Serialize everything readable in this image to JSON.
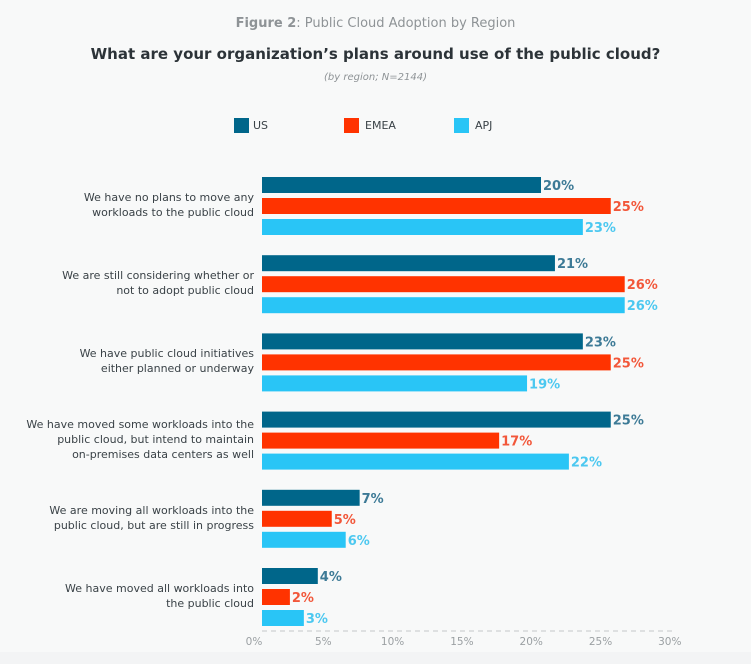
{
  "figure": {
    "label_bold": "Figure 2",
    "label_rest": ": Public Cloud Adoption by Region",
    "question": "What are your organization’s plans around use of the public cloud?",
    "subtitle": "(by region; N=2144)"
  },
  "chart_data": {
    "type": "bar",
    "orientation": "horizontal",
    "title": "What are your organization’s plans around use of the public cloud?",
    "subtitle": "(by region; N=2144)",
    "xlabel": "",
    "ylabel": "",
    "xlim": [
      0,
      30
    ],
    "x_ticks": [
      "0%",
      "5%",
      "10%",
      "15%",
      "20%",
      "25%",
      "30%"
    ],
    "x_tick_values": [
      0,
      5,
      10,
      15,
      20,
      25,
      30
    ],
    "legend_position": "top",
    "grid": false,
    "categories": [
      [
        "We have no plans to move any",
        "workloads to the public cloud"
      ],
      [
        "We are still considering whether or",
        "not to adopt public cloud"
      ],
      [
        "We have public cloud initiatives",
        "either planned or underway"
      ],
      [
        "We have moved some workloads into the",
        "public cloud, but intend to maintain",
        "on-premises data centers as well"
      ],
      [
        "We are moving all workloads into the",
        "public cloud, but are still in progress"
      ],
      [
        "We have moved all workloads into",
        "the public cloud"
      ]
    ],
    "series": [
      {
        "name": "US",
        "color": "#00668a",
        "label_color": "#3d7a96",
        "values": [
          20,
          21,
          23,
          25,
          7,
          4
        ]
      },
      {
        "name": "EMEA",
        "color": "#ff3300",
        "label_color": "#f2573a",
        "values": [
          25,
          26,
          25,
          17,
          5,
          2
        ]
      },
      {
        "name": "APJ",
        "color": "#29c5f6",
        "label_color": "#4cc8f0",
        "values": [
          23,
          26,
          19,
          22,
          6,
          3
        ]
      }
    ],
    "value_suffix": "%"
  }
}
